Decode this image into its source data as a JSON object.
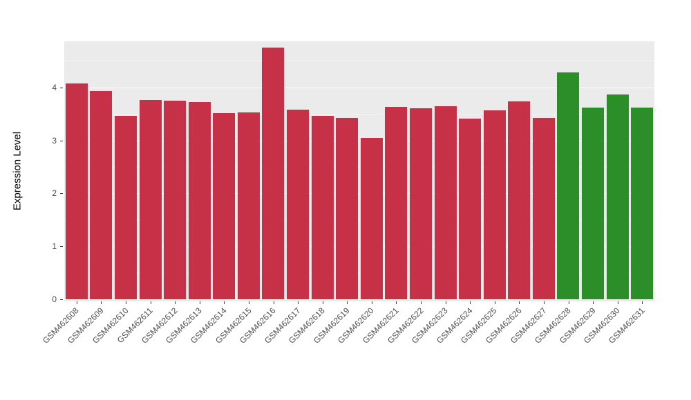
{
  "chart_data": {
    "type": "bar",
    "title": "",
    "xlabel": "",
    "ylabel": "Expression Level",
    "ylim": [
      0,
      4.87
    ],
    "yticks": [
      0,
      1,
      2,
      3,
      4
    ],
    "grid": true,
    "legend": "none",
    "panel_background": "#EBEBEB",
    "figure_background": "#FFFFFF",
    "axis_text_color": "#4D4D4D",
    "categories": [
      "GSM462608",
      "GSM462609",
      "GSM462610",
      "GSM462611",
      "GSM462612",
      "GSM462613",
      "GSM462614",
      "GSM462615",
      "GSM462616",
      "GSM462617",
      "GSM462618",
      "GSM462619",
      "GSM462620",
      "GSM462621",
      "GSM462622",
      "GSM462623",
      "GSM462624",
      "GSM462625",
      "GSM462626",
      "GSM462627",
      "GSM462628",
      "GSM462629",
      "GSM462630",
      "GSM462631"
    ],
    "values": [
      4.08,
      3.93,
      3.47,
      3.77,
      3.75,
      3.72,
      3.51,
      3.53,
      4.75,
      3.58,
      3.46,
      3.43,
      3.05,
      3.64,
      3.61,
      3.65,
      3.41,
      3.57,
      3.74,
      3.42,
      4.28,
      3.62,
      3.87,
      3.62
    ],
    "colors": [
      "#C73148",
      "#C73148",
      "#C73148",
      "#C73148",
      "#C73148",
      "#C73148",
      "#C73148",
      "#C73148",
      "#C73148",
      "#C73148",
      "#C73148",
      "#C73148",
      "#C73148",
      "#C73148",
      "#C73148",
      "#C73148",
      "#C73148",
      "#C73148",
      "#C73148",
      "#C73148",
      "#2C8E28",
      "#2C8E28",
      "#2C8E28",
      "#2C8E28"
    ],
    "group_colors": {
      "samples_red": "#C73148",
      "samples_green": "#2C8E28"
    }
  }
}
